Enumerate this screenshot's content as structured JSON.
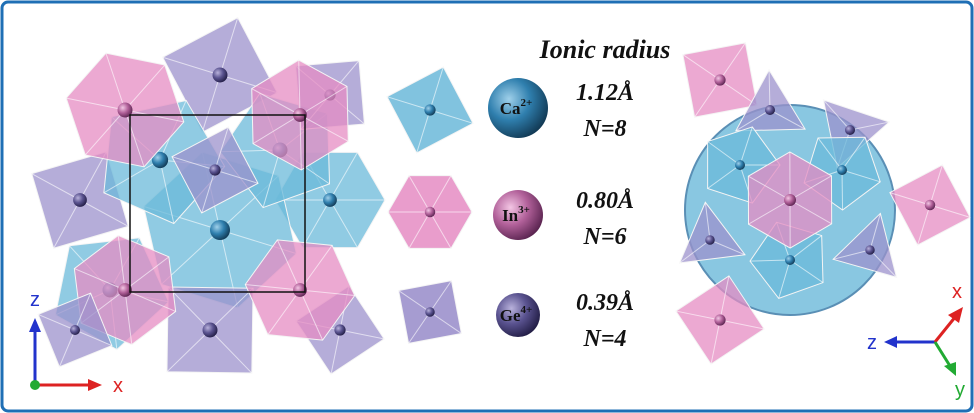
{
  "legend": {
    "title": "Ionic radius",
    "items": [
      {
        "ion": "Ca",
        "charge": "2+",
        "radius": "1.12Å",
        "coordination": "N=8"
      },
      {
        "ion": "In",
        "charge": "3+",
        "radius": "0.80Å",
        "coordination": "N=6"
      },
      {
        "ion": "Ge",
        "charge": "4+",
        "radius": "0.39Å",
        "coordination": "N=4"
      }
    ]
  },
  "axes_left": {
    "vertical": "z",
    "horizontal": "x"
  },
  "axes_right": {
    "horizontal": "z",
    "up": "x",
    "down": "y"
  }
}
